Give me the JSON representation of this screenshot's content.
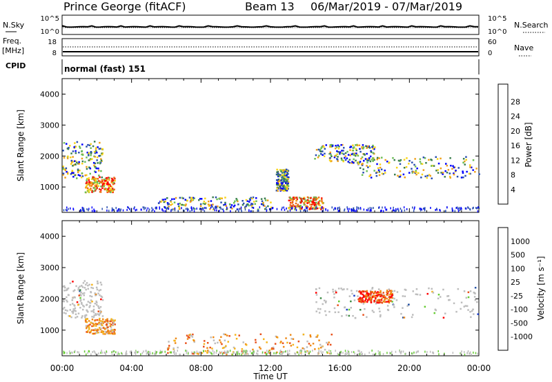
{
  "header": {
    "station": "Prince George (fitACF)",
    "beam": "Beam 13",
    "date_range": "06/Mar/2019 - 07/Mar/2019"
  },
  "top_panel": {
    "left_label": "N.Sky",
    "right_label": "N.Search",
    "left_ticks": [
      "10^5",
      "10^0"
    ],
    "right_ticks": [
      "10^5",
      "10^0"
    ]
  },
  "freq_panel": {
    "left_label_1": "Freq.",
    "left_label_2": "[MHz]",
    "right_label": "Nave",
    "left_ticks": [
      "18",
      "8"
    ],
    "right_ticks": [
      "60",
      "0"
    ]
  },
  "cpid": {
    "label": "CPID",
    "value": "normal (fast) 151"
  },
  "colors": {
    "power": [
      "#0000ff",
      "#2a4fb0",
      "#3b7d4e",
      "#6bbd55",
      "#f7d417",
      "#f0a019",
      "#ee6a16",
      "#e62b10",
      "#ff0000"
    ],
    "velocity": [
      "#ff0000",
      "#e8501a",
      "#ef8a18",
      "#f5b41c",
      "#bdbdbd",
      "#bdbdbd",
      "#66cc33",
      "#3b8a44",
      "#2855a8",
      "#1a3cc9"
    ],
    "grid": "#000000"
  },
  "chart_data": [
    {
      "type": "heatmap",
      "title": "Power",
      "xlabel": "",
      "ylabel": "Slant Range [km]",
      "x_ticks": [
        "00:00",
        "04:00",
        "08:00",
        "12:00",
        "16:00",
        "20:00",
        "00:00"
      ],
      "y_ticks": [
        "1000",
        "2000",
        "3000",
        "4000"
      ],
      "ylim": [
        180,
        4500
      ],
      "colorbar": {
        "label": "Power [dB]",
        "ticks": [
          "4",
          "8",
          "12",
          "16",
          "20",
          "24",
          "28"
        ]
      },
      "echo_regions": [
        {
          "t_start": 0.0,
          "t_end": 2.3,
          "range_start": 1300,
          "range_end": 2500,
          "level": "mixed"
        },
        {
          "t_start": 1.3,
          "t_end": 3.0,
          "range_start": 850,
          "range_end": 1350,
          "level": "high"
        },
        {
          "t_start": 5.5,
          "t_end": 12.0,
          "range_start": 300,
          "range_end": 700,
          "level": "mixed"
        },
        {
          "t_start": 12.3,
          "t_end": 13.0,
          "range_start": 900,
          "range_end": 1600,
          "level": "mixed"
        },
        {
          "t_start": 13.0,
          "t_end": 15.0,
          "range_start": 300,
          "range_end": 700,
          "level": "high"
        },
        {
          "t_start": 14.5,
          "t_end": 18.0,
          "range_start": 1800,
          "range_end": 2400,
          "level": "mixed"
        },
        {
          "t_start": 17.0,
          "t_end": 24.0,
          "range_start": 1300,
          "range_end": 2000,
          "level": "mixed"
        }
      ]
    },
    {
      "type": "heatmap",
      "title": "Velocity",
      "xlabel": "Time UT",
      "ylabel": "Slant Range [km]",
      "x_ticks": [
        "00:00",
        "04:00",
        "08:00",
        "12:00",
        "16:00",
        "20:00",
        "00:00"
      ],
      "y_ticks": [
        "1000",
        "2000",
        "3000",
        "4000"
      ],
      "ylim": [
        180,
        4500
      ],
      "colorbar": {
        "label": "Velocity [m s⁻¹]",
        "ticks": [
          "1000",
          "500",
          "100",
          "25",
          "-25",
          "-100",
          "-500",
          "-1000"
        ]
      },
      "echo_regions": [
        {
          "t_start": 0.0,
          "t_end": 2.3,
          "range_start": 1400,
          "range_end": 2600,
          "level": "near-zero"
        },
        {
          "t_start": 1.3,
          "t_end": 3.0,
          "range_start": 900,
          "range_end": 1400,
          "level": "negative"
        },
        {
          "t_start": 6.0,
          "t_end": 15.5,
          "range_start": 250,
          "range_end": 900,
          "level": "negative"
        },
        {
          "t_start": 14.5,
          "t_end": 24.0,
          "range_start": 1400,
          "range_end": 2400,
          "level": "near-zero"
        },
        {
          "t_start": 17.0,
          "t_end": 19.0,
          "range_start": 1900,
          "range_end": 2300,
          "level": "strong-negative"
        }
      ]
    }
  ]
}
